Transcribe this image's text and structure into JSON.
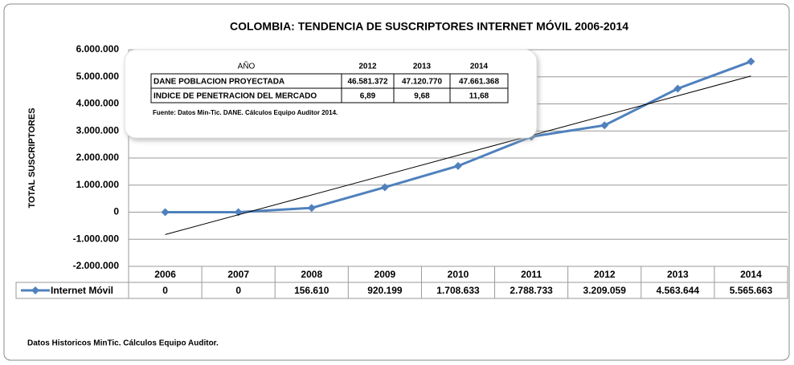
{
  "chart_data": {
    "type": "line",
    "title": "COLOMBIA: TENDENCIA DE SUSCRIPTORES INTERNET MÓVIL 2006-2014",
    "y_label": "TOTAL SUSCRIPTORES",
    "categories": [
      "2006",
      "2007",
      "2008",
      "2009",
      "2010",
      "2011",
      "2012",
      "2013",
      "2014"
    ],
    "series": [
      {
        "name": "Internet Móvil",
        "color": "#4f81bd",
        "values": [
          0,
          0,
          156610,
          920199,
          1708633,
          2788733,
          3209059,
          4563644,
          5565663
        ],
        "value_labels": [
          "0",
          "0",
          "156.610",
          "920.199",
          "1.708.633",
          "2.788.733",
          "3.209.059",
          "4.563.644",
          "5.565.663"
        ]
      }
    ],
    "trendline": "linear",
    "ylim": [
      -2000000,
      6000000
    ],
    "yticks": [
      {
        "value": -2000000,
        "label": "-2.000.000"
      },
      {
        "value": -1000000,
        "label": "-1.000.000"
      },
      0,
      {
        "value": 1000000,
        "label": "1.000.000"
      },
      {
        "value": 2000000,
        "label": "2.000.000"
      },
      {
        "value": 3000000,
        "label": "3.000.000"
      },
      {
        "value": 4000000,
        "label": "4.000.000"
      },
      {
        "value": 5000000,
        "label": "5.000.000"
      },
      {
        "value": 6000000,
        "label": "6.000.000"
      }
    ],
    "grid": true
  },
  "inset": {
    "header": [
      "AÑO",
      "2012",
      "2013",
      "2014"
    ],
    "rows": [
      [
        "DANE POBLACION PROYECTADA",
        "46.581.372",
        "47.120.770",
        "47.661.368"
      ],
      [
        "INDICE DE PENETRACION DEL MERCADO",
        "6,89",
        "9,68",
        "11,68"
      ]
    ],
    "source": "Fuente: Datos Min-Tic. DANE. Cálculos Equipo Auditor 2014."
  },
  "footer": "Datos Historicos MinTic. Cálculos Equipo Auditor."
}
